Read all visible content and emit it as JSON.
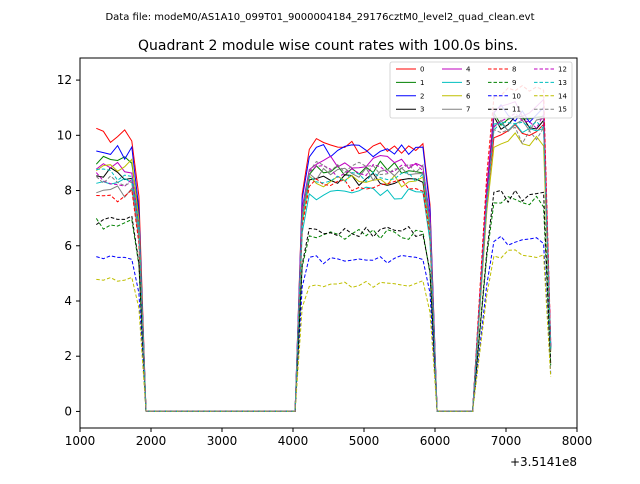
{
  "suptitle": "Data file: modeM0/AS1A10_099T01_9000004184_29176cztM0_level2_quad_clean.evt",
  "chart_data": {
    "type": "line",
    "title": "Quadrant 2 module wise count rates with 100.0s bins.",
    "xlabel": "",
    "ylabel": "",
    "x_offset_label": "+3.5141e8",
    "xlim": [
      1000,
      8000
    ],
    "ylim": [
      -0.6,
      12.8
    ],
    "xticks": [
      1000,
      2000,
      3000,
      4000,
      5000,
      6000,
      7000,
      8000
    ],
    "xtick_labels": [
      "1000",
      "2000",
      "3000",
      "4000",
      "5000",
      "6000",
      "7000",
      "8000"
    ],
    "yticks": [
      0,
      2,
      4,
      6,
      8,
      10,
      12
    ],
    "ytick_labels": [
      "0",
      "2",
      "4",
      "6",
      "8",
      "10",
      "12"
    ],
    "grid": false,
    "legend_position": "top-right",
    "bin_size_s": 100,
    "segments": [
      {
        "x_start": 1230,
        "n_bins": 7
      },
      {
        "x_start": 1930,
        "n_bins": 22
      },
      {
        "x_start": 4130,
        "n_bins": 19
      },
      {
        "x_start": 6030,
        "n_bins": 6
      },
      {
        "x_start": 6730,
        "n_bins": 10
      }
    ],
    "series": [
      {
        "name": "0",
        "color": "#ff0000",
        "dash": "solid",
        "levels": [
          10.0,
          9.6,
          10.2
        ]
      },
      {
        "name": "1",
        "color": "#008000",
        "dash": "solid",
        "levels": [
          9.2,
          8.8,
          10.6
        ]
      },
      {
        "name": "2",
        "color": "#0000ff",
        "dash": "solid",
        "levels": [
          9.4,
          9.4,
          10.8
        ]
      },
      {
        "name": "3",
        "color": "#000000",
        "dash": "solid",
        "levels": [
          8.6,
          8.4,
          10.5
        ]
      },
      {
        "name": "4",
        "color": "#bf00bf",
        "dash": "solid",
        "levels": [
          8.8,
          9.0,
          11.0
        ]
      },
      {
        "name": "5",
        "color": "#00bfbf",
        "dash": "solid",
        "levels": [
          8.2,
          7.9,
          10.2
        ]
      },
      {
        "name": "6",
        "color": "#bfbf00",
        "dash": "solid",
        "levels": [
          8.9,
          8.3,
          9.8
        ]
      },
      {
        "name": "7",
        "color": "#808080",
        "dash": "solid",
        "levels": [
          8.0,
          8.6,
          10.4
        ]
      },
      {
        "name": "8",
        "color": "#ff0000",
        "dash": "dashed",
        "levels": [
          7.8,
          8.2,
          11.6
        ]
      },
      {
        "name": "9",
        "color": "#008000",
        "dash": "dashed",
        "levels": [
          6.8,
          6.4,
          7.6
        ]
      },
      {
        "name": "10",
        "color": "#0000ff",
        "dash": "dashed",
        "levels": [
          5.5,
          5.5,
          6.2
        ]
      },
      {
        "name": "11",
        "color": "#000000",
        "dash": "dashed",
        "levels": [
          6.9,
          6.5,
          7.8
        ]
      },
      {
        "name": "12",
        "color": "#bf00bf",
        "dash": "dashed",
        "levels": [
          8.4,
          8.7,
          10.5
        ]
      },
      {
        "name": "13",
        "color": "#00bfbf",
        "dash": "dashed",
        "levels": [
          8.6,
          8.5,
          10.3
        ]
      },
      {
        "name": "14",
        "color": "#bfbf00",
        "dash": "dashed",
        "levels": [
          4.8,
          4.6,
          5.7
        ]
      },
      {
        "name": "15",
        "color": "#808080",
        "dash": "dashed",
        "levels": [
          8.3,
          8.8,
          10.0
        ]
      }
    ]
  }
}
